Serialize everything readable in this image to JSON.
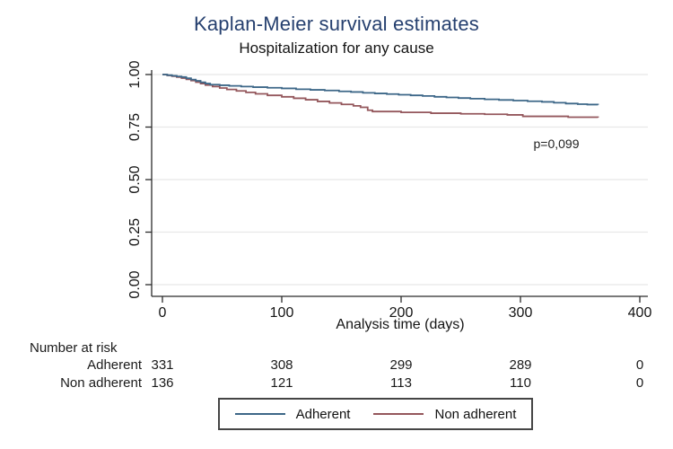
{
  "chart_data": {
    "type": "line",
    "subtype": "kaplan-meier-step",
    "title": "Kaplan-Meier survival estimates",
    "subtitle": "Hospitalization for any cause",
    "xlabel": "Analysis time (days)",
    "ylabel": "",
    "xlim": [
      0,
      400
    ],
    "ylim": [
      0.0,
      1.0
    ],
    "x_ticks": [
      0,
      100,
      200,
      300,
      400
    ],
    "y_tick_labels": [
      "0.00",
      "0.25",
      "0.50",
      "0.75",
      "1.00"
    ],
    "grid": "horizontal",
    "legend_position": "bottom",
    "annotation": {
      "text": "p=0,099"
    },
    "series": [
      {
        "name": "Adherent",
        "color": "#3d6788",
        "step": true,
        "points": [
          [
            0,
            1.0
          ],
          [
            4,
            0.997
          ],
          [
            8,
            0.994
          ],
          [
            12,
            0.991
          ],
          [
            16,
            0.988
          ],
          [
            20,
            0.982
          ],
          [
            24,
            0.976
          ],
          [
            28,
            0.97
          ],
          [
            32,
            0.963
          ],
          [
            36,
            0.957
          ],
          [
            40,
            0.952
          ],
          [
            48,
            0.949
          ],
          [
            56,
            0.946
          ],
          [
            66,
            0.943
          ],
          [
            76,
            0.94
          ],
          [
            88,
            0.937
          ],
          [
            100,
            0.934
          ],
          [
            112,
            0.93
          ],
          [
            124,
            0.927
          ],
          [
            136,
            0.924
          ],
          [
            148,
            0.92
          ],
          [
            158,
            0.917
          ],
          [
            168,
            0.913
          ],
          [
            178,
            0.91
          ],
          [
            188,
            0.907
          ],
          [
            198,
            0.904
          ],
          [
            208,
            0.901
          ],
          [
            218,
            0.898
          ],
          [
            228,
            0.894
          ],
          [
            238,
            0.891
          ],
          [
            248,
            0.888
          ],
          [
            258,
            0.885
          ],
          [
            270,
            0.882
          ],
          [
            282,
            0.879
          ],
          [
            294,
            0.876
          ],
          [
            306,
            0.873
          ],
          [
            318,
            0.87
          ],
          [
            328,
            0.866
          ],
          [
            338,
            0.862
          ],
          [
            348,
            0.859
          ],
          [
            356,
            0.857
          ],
          [
            365,
            0.856
          ]
        ]
      },
      {
        "name": "Non adherent",
        "color": "#94575c",
        "step": true,
        "points": [
          [
            0,
            1.0
          ],
          [
            4,
            0.996
          ],
          [
            8,
            0.992
          ],
          [
            12,
            0.988
          ],
          [
            16,
            0.983
          ],
          [
            20,
            0.977
          ],
          [
            24,
            0.971
          ],
          [
            28,
            0.964
          ],
          [
            32,
            0.957
          ],
          [
            36,
            0.95
          ],
          [
            42,
            0.943
          ],
          [
            48,
            0.936
          ],
          [
            54,
            0.929
          ],
          [
            62,
            0.922
          ],
          [
            70,
            0.915
          ],
          [
            78,
            0.908
          ],
          [
            88,
            0.901
          ],
          [
            100,
            0.894
          ],
          [
            110,
            0.887
          ],
          [
            120,
            0.88
          ],
          [
            130,
            0.872
          ],
          [
            140,
            0.865
          ],
          [
            150,
            0.858
          ],
          [
            160,
            0.851
          ],
          [
            166,
            0.844
          ],
          [
            172,
            0.83
          ],
          [
            176,
            0.824
          ],
          [
            200,
            0.82
          ],
          [
            225,
            0.816
          ],
          [
            250,
            0.813
          ],
          [
            270,
            0.811
          ],
          [
            289,
            0.808
          ],
          [
            302,
            0.801
          ],
          [
            340,
            0.797
          ],
          [
            365,
            0.795
          ]
        ]
      }
    ]
  },
  "number_at_risk": {
    "header": "Number at risk",
    "times": [
      0,
      100,
      200,
      300,
      400
    ],
    "rows": [
      {
        "label": "Adherent",
        "values": [
          "331",
          "308",
          "299",
          "289",
          "0"
        ]
      },
      {
        "label": "Non adherent",
        "values": [
          "136",
          "121",
          "113",
          "110",
          "0"
        ]
      }
    ]
  },
  "colors": {
    "title": "#26406f",
    "adherent": "#3d6788",
    "non_adherent": "#94575c",
    "grid": "#e8e8e8",
    "axis": "#2b2b2b"
  }
}
